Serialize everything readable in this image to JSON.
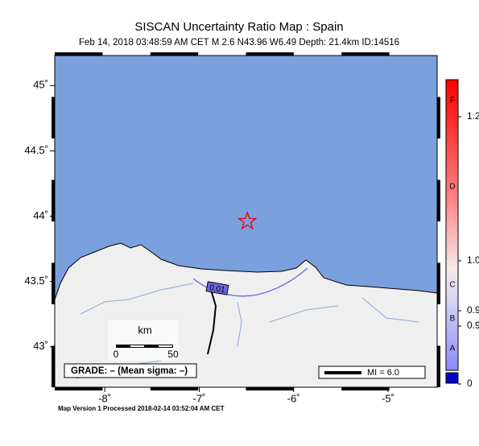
{
  "header": {
    "title": "SISCAN Uncertainty Ratio Map : Spain",
    "subtitle": "Feb 14, 2018 03:48:59 AM CET   M 2.6   N43.96 W6.49   Depth: 21.4km   ID:14516"
  },
  "map": {
    "xlim": [
      -8.53,
      -4.48
    ],
    "ylim": [
      42.69,
      45.23
    ],
    "xticks": [
      {
        "value": -8,
        "label": "-8˚"
      },
      {
        "value": -7,
        "label": "-7˚"
      },
      {
        "value": -6,
        "label": "-6˚"
      },
      {
        "value": -5,
        "label": "-5˚"
      }
    ],
    "yticks": [
      {
        "value": 43,
        "label": "43˚"
      },
      {
        "value": 43.5,
        "label": "43.5˚"
      },
      {
        "value": 44,
        "label": "44˚"
      },
      {
        "value": 44.5,
        "label": "44.5˚"
      },
      {
        "value": 45,
        "label": "45˚"
      }
    ],
    "epicenter": {
      "lon": -6.49,
      "lat": 43.96
    },
    "contour_label": "0.01",
    "scale": {
      "unit": "km",
      "ticks": [
        0,
        50
      ]
    },
    "grade": "GRADE: – (Mean sigma: –)",
    "legend": "MI = 6.0"
  },
  "colorbar": {
    "letters": [
      "F",
      "D",
      "C",
      "B",
      "A"
    ],
    "ticks": [
      1.2,
      {
        "value": 1.0,
        "label": "1.0"
      },
      0.9,
      0.9,
      0
    ]
  },
  "footer": "Map Version 1 Processed 2018-02-14 03:52:04 AM CET"
}
